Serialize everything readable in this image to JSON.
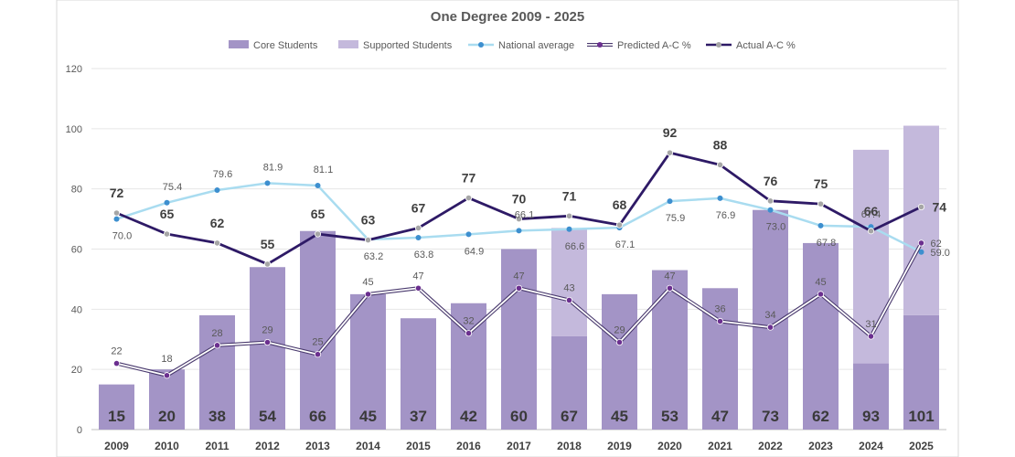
{
  "chart_data": {
    "type": "bar",
    "title": "One Degree 2009 - 2025",
    "categories": [
      "2009",
      "2010",
      "2011",
      "2012",
      "2013",
      "2014",
      "2015",
      "2016",
      "2017",
      "2018",
      "2019",
      "2020",
      "2021",
      "2022",
      "2023",
      "2024",
      "2025"
    ],
    "ylim": [
      0,
      120
    ],
    "yticks": [
      0,
      20,
      40,
      60,
      80,
      100,
      120
    ],
    "grid": true,
    "legend_position": "top",
    "bar_labels": [
      "15",
      "20",
      "38",
      "54",
      "66",
      "45",
      "37",
      "42",
      "60",
      "67",
      "45",
      "53",
      "47",
      "73",
      "62",
      "93",
      "101"
    ],
    "series": [
      {
        "name": "Core Students",
        "kind": "bar",
        "color": "#a394c6",
        "values": [
          15,
          20,
          38,
          54,
          66,
          45,
          37,
          42,
          60,
          31,
          45,
          53,
          47,
          73,
          62,
          22,
          38
        ]
      },
      {
        "name": "Supported Students",
        "kind": "bar",
        "color": "#c4b9dc",
        "values": [
          0,
          0,
          0,
          0,
          0,
          0,
          0,
          0,
          0,
          36,
          0,
          0,
          0,
          0,
          0,
          71,
          63
        ]
      },
      {
        "name": "National average",
        "kind": "line",
        "color": "#a9dcf0",
        "marker_color": "#3d8fcf",
        "values": [
          70.0,
          75.4,
          79.6,
          81.9,
          81.1,
          63.2,
          63.8,
          64.9,
          66.1,
          66.6,
          67.1,
          75.9,
          76.9,
          73.0,
          67.8,
          67.4,
          59.0
        ],
        "labels": [
          "70.0",
          "75.4",
          "79.6",
          "81.9",
          "81.1",
          "63.2",
          "63.8",
          "64.9",
          "66.1",
          "66.6",
          "67.1",
          "75.9",
          "76.9",
          "73.0",
          "67.8",
          "67.4",
          "59.0"
        ]
      },
      {
        "name": "Predicted A-C %",
        "kind": "line",
        "color": "#ffffff",
        "marker_color": "#6b2f8f",
        "values": [
          22,
          18,
          28,
          29,
          25,
          45,
          47,
          32,
          47,
          43,
          29,
          47,
          36,
          34,
          45,
          31,
          62
        ],
        "labels": [
          "22",
          "18",
          "28",
          "29",
          "25",
          "45",
          "47",
          "32",
          "47",
          "43",
          "29",
          "47",
          "36",
          "34",
          "45",
          "31",
          "62"
        ]
      },
      {
        "name": "Actual A-C %",
        "kind": "line",
        "color": "#2e1a66",
        "marker_color": "#a6a6a6",
        "values": [
          72,
          65,
          62,
          55,
          65,
          63,
          67,
          77,
          70,
          71,
          68,
          92,
          88,
          76,
          75,
          66,
          74
        ],
        "labels": [
          "72",
          "65",
          "62",
          "55",
          "65",
          "63",
          "67",
          "77",
          "70",
          "71",
          "68",
          "92",
          "88",
          "76",
          "75",
          "66",
          "74"
        ]
      }
    ]
  }
}
